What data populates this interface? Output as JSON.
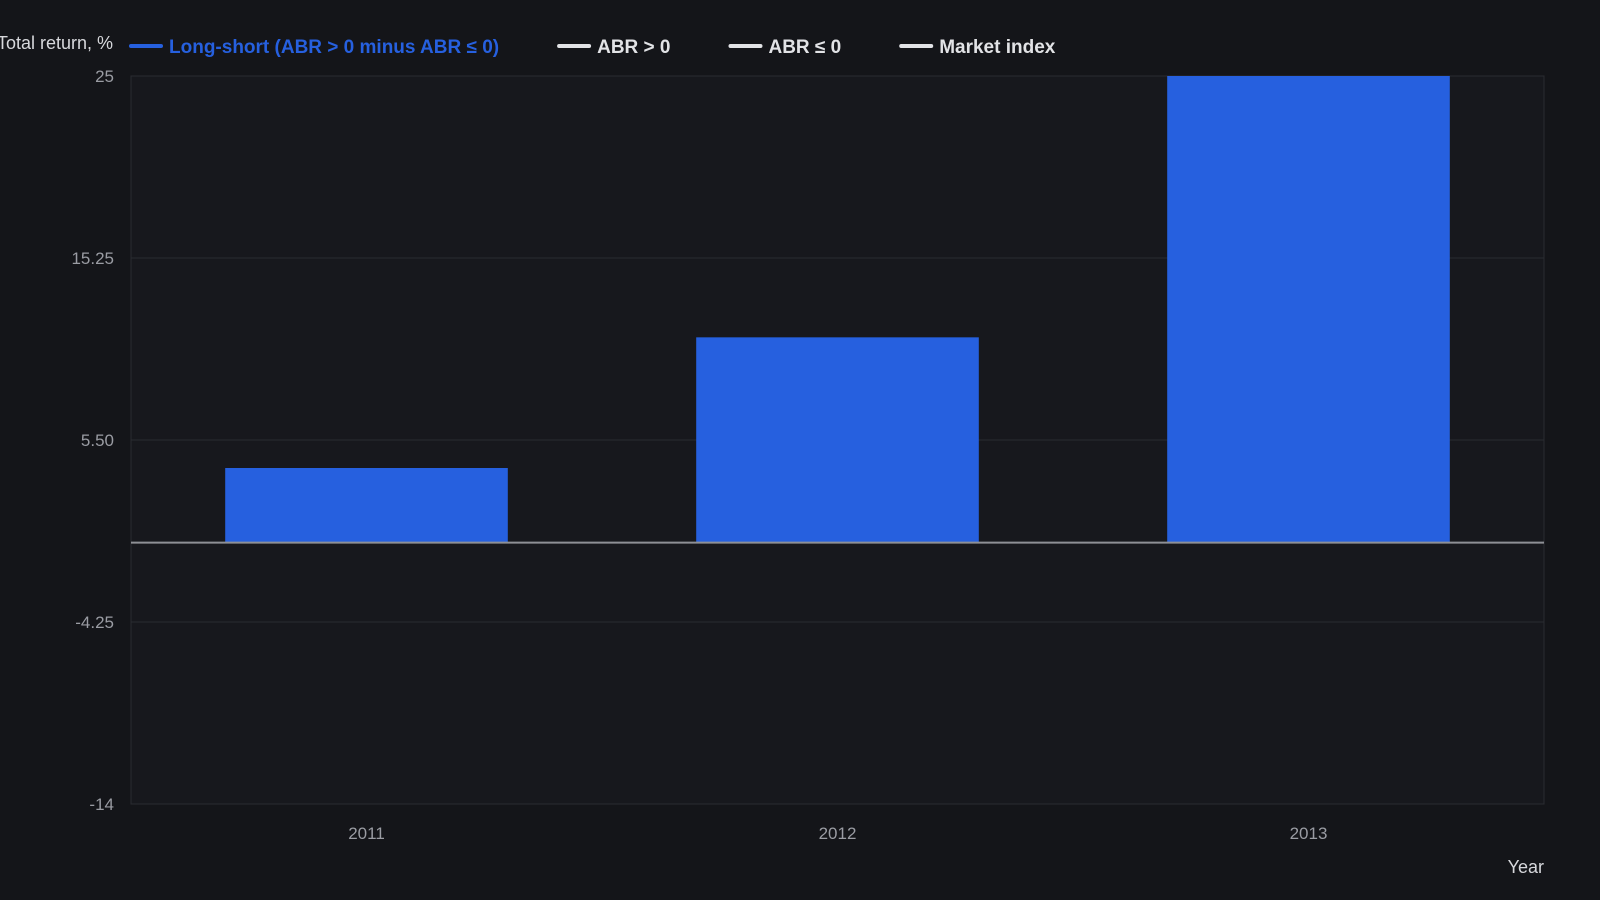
{
  "chart_data": {
    "type": "bar",
    "categories": [
      "2011",
      "2012",
      "2013"
    ],
    "series": [
      {
        "name": "Long-short (ABR > 0 minus ABR ≤ 0)",
        "color": "#2660df",
        "values": [
          4.0,
          11.0,
          25.0
        ]
      }
    ],
    "legend": [
      {
        "label": "Long-short (ABR > 0 minus ABR ≤ 0)",
        "color": "#2660df",
        "text_color": "#2660df"
      },
      {
        "label": "ABR > 0",
        "color": "#e2e3e6",
        "text_color": "#e2e3e6"
      },
      {
        "label": "ABR ≤ 0",
        "color": "#e2e3e6",
        "text_color": "#e2e3e6"
      },
      {
        "label": "Market index",
        "color": "#e2e3e6",
        "text_color": "#e2e3e6"
      }
    ],
    "legend_position": "top",
    "ylabel": "Total return, %",
    "xlabel": "Year",
    "ylim": [
      -14,
      25
    ],
    "yticks": [
      25,
      15.25,
      5.5,
      -4.25,
      -14
    ],
    "ytick_labels": [
      "25",
      "15.25",
      "5.50",
      "-4.25",
      "-14"
    ],
    "grid": true,
    "zero_line": true
  },
  "colors": {
    "background": "#141519",
    "plot_background": "#17181d",
    "grid": "#2a2c31",
    "axis_text": "#9a9ca3",
    "zero_line": "#8e9096"
  }
}
